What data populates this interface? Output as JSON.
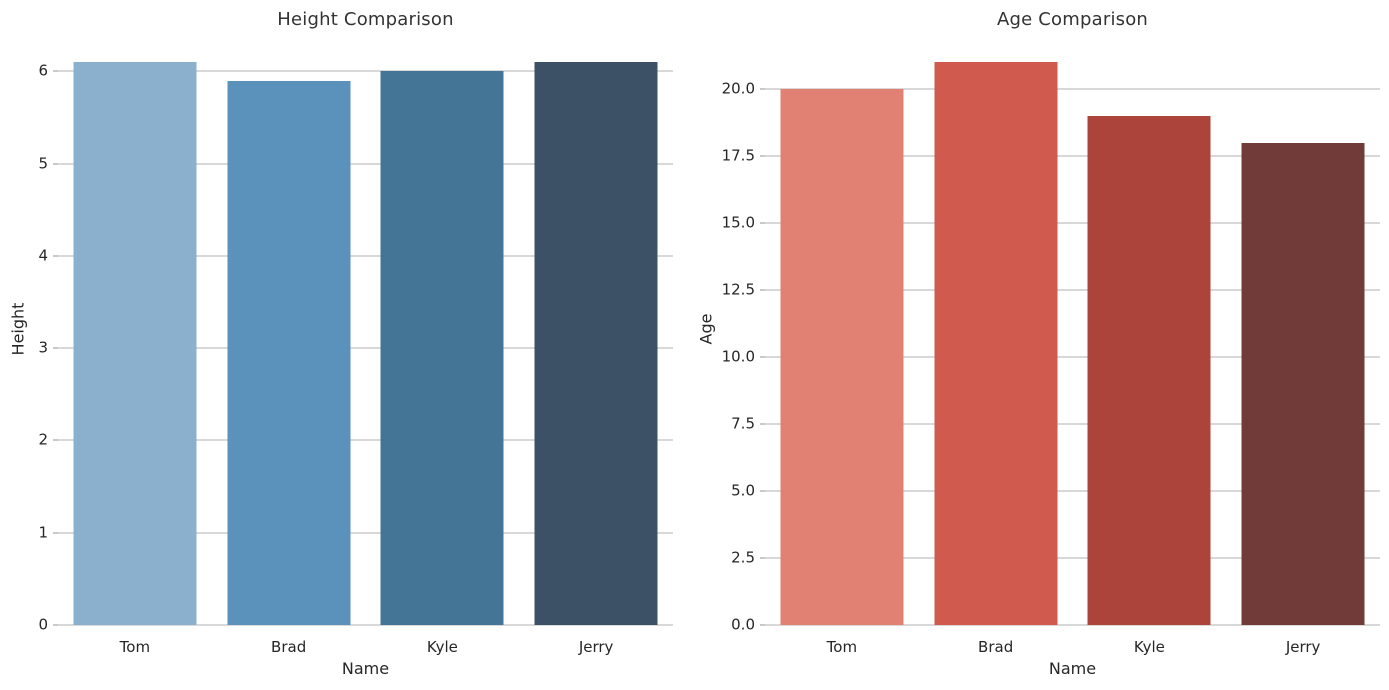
{
  "figure": {
    "background": "#ffffff",
    "grid_color": "#d8d8d8",
    "tick_mark_color": "#c9c9c9",
    "text_color": "#262626",
    "title_color": "#333333"
  },
  "chart_data": [
    {
      "type": "bar",
      "title": "Height Comparison",
      "xlabel": "Name",
      "ylabel": "Height",
      "categories": [
        "Tom",
        "Brad",
        "Kyle",
        "Jerry"
      ],
      "values": [
        6.1,
        5.9,
        6.0,
        6.1
      ],
      "bar_colors": [
        "#8bb0cd",
        "#5b92bb",
        "#447597",
        "#3c5166"
      ],
      "ylim": [
        0,
        6.405
      ],
      "bar_width_fraction": 0.8,
      "grid": true,
      "legend": null,
      "yticks": [
        {
          "value": 0,
          "label": "0"
        },
        {
          "value": 1,
          "label": "1"
        },
        {
          "value": 2,
          "label": "2"
        },
        {
          "value": 3,
          "label": "3"
        },
        {
          "value": 4,
          "label": "4"
        },
        {
          "value": 5,
          "label": "5"
        },
        {
          "value": 6,
          "label": "6"
        }
      ]
    },
    {
      "type": "bar",
      "title": "Age Comparison",
      "xlabel": "Name",
      "ylabel": "Age",
      "categories": [
        "Tom",
        "Brad",
        "Kyle",
        "Jerry"
      ],
      "values": [
        20,
        21,
        19,
        18
      ],
      "bar_colors": [
        "#e08173",
        "#d15a4f",
        "#ad443c",
        "#703b39"
      ],
      "ylim": [
        0,
        22.05
      ],
      "bar_width_fraction": 0.8,
      "grid": true,
      "legend": null,
      "yticks": [
        {
          "value": 0,
          "label": "0.0"
        },
        {
          "value": 2.5,
          "label": "2.5"
        },
        {
          "value": 5,
          "label": "5.0"
        },
        {
          "value": 7.5,
          "label": "7.5"
        },
        {
          "value": 10,
          "label": "10.0"
        },
        {
          "value": 12.5,
          "label": "12.5"
        },
        {
          "value": 15,
          "label": "15.0"
        },
        {
          "value": 17.5,
          "label": "17.5"
        },
        {
          "value": 20,
          "label": "20.0"
        }
      ]
    }
  ]
}
